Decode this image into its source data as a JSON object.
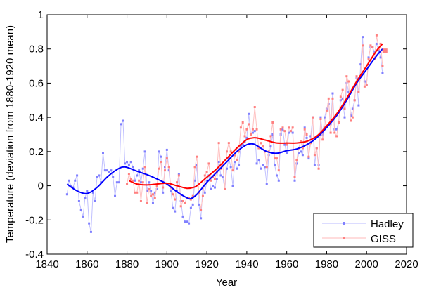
{
  "chart_data": {
    "type": "line",
    "xlabel": "Year",
    "ylabel": "Temperature (deviation from 1880-1920 mean)",
    "xlim": [
      1840,
      2020
    ],
    "ylim": [
      -0.4,
      1
    ],
    "xticks": [
      "1840",
      "1860",
      "1880",
      "1900",
      "1920",
      "1940",
      "1960",
      "1980",
      "2000",
      "2020"
    ],
    "yticks": [
      "-0.4",
      "-0.2",
      "0",
      "0.2",
      "0.4",
      "0.6",
      "0.8",
      "1"
    ],
    "grid": false,
    "legend_position": "bottom-right",
    "series": [
      {
        "name": "Hadley",
        "color": "#8080ff",
        "smooth_color": "#0000ff",
        "x_start": 1850,
        "values": [
          -0.05,
          0.03,
          0.0,
          -0.01,
          0.03,
          0.06,
          -0.09,
          -0.14,
          -0.18,
          -0.07,
          -0.03,
          -0.22,
          -0.27,
          -0.04,
          -0.09,
          0.05,
          0.06,
          0.02,
          0.19,
          0.09,
          0.09,
          0.08,
          0.09,
          0.05,
          -0.06,
          0.02,
          0.02,
          0.36,
          0.38,
          0.13,
          0.14,
          0.12,
          0.14,
          0.11,
          0.03,
          0.06,
          0.09,
          0.02,
          0.1,
          0.2,
          -0.03,
          0.02,
          -0.03,
          -0.1,
          -0.04,
          -0.02,
          0.2,
          0.17,
          -0.04,
          0.11,
          0.21,
          0.09,
          -0.03,
          -0.13,
          -0.15,
          -0.03,
          0.07,
          -0.09,
          -0.18,
          -0.21,
          -0.21,
          -0.22,
          -0.13,
          -0.11,
          0.03,
          0.12,
          -0.11,
          -0.19,
          -0.01,
          -0.04,
          0.03,
          0.06,
          -0.02,
          0.0,
          -0.01,
          0.04,
          0.14,
          0.06,
          0.05,
          -0.02,
          0.1,
          0.16,
          0.11,
          0.0,
          0.14,
          0.1,
          0.12,
          0.23,
          0.24,
          0.26,
          0.28,
          0.42,
          0.3,
          0.31,
          0.32,
          0.13,
          0.15,
          0.1,
          0.12,
          0.11,
          0.01,
          0.18,
          0.23,
          0.3,
          0.12,
          0.06,
          0.03,
          0.3,
          0.33,
          0.24,
          0.19,
          0.31,
          0.32,
          0.31,
          0.03,
          0.13,
          0.19,
          0.2,
          0.18,
          0.34,
          0.28,
          0.16,
          0.29,
          0.4,
          0.12,
          0.22,
          0.12,
          0.4,
          0.3,
          0.4,
          0.45,
          0.48,
          0.36,
          0.54,
          0.33,
          0.33,
          0.37,
          0.5,
          0.51,
          0.4,
          0.6,
          0.55,
          0.41,
          0.45,
          0.5,
          0.63,
          0.47,
          0.71,
          0.87,
          0.61,
          0.59,
          0.75,
          0.81,
          0.81,
          0.78,
          0.83,
          0.79,
          0.75,
          0.66
        ],
        "smooth": [
          [
            1850,
            0.01
          ],
          [
            1855,
            -0.03
          ],
          [
            1860,
            -0.045
          ],
          [
            1865,
            -0.01
          ],
          [
            1870,
            0.05
          ],
          [
            1875,
            0.095
          ],
          [
            1879,
            0.11
          ],
          [
            1885,
            0.085
          ],
          [
            1890,
            0.065
          ],
          [
            1895,
            0.04
          ],
          [
            1900,
            0.01
          ],
          [
            1905,
            -0.035
          ],
          [
            1910,
            -0.07
          ],
          [
            1912,
            -0.075
          ],
          [
            1915,
            -0.05
          ],
          [
            1920,
            0.02
          ],
          [
            1925,
            0.08
          ],
          [
            1930,
            0.14
          ],
          [
            1935,
            0.2
          ],
          [
            1940,
            0.24
          ],
          [
            1943,
            0.245
          ],
          [
            1945,
            0.235
          ],
          [
            1950,
            0.2
          ],
          [
            1955,
            0.19
          ],
          [
            1960,
            0.205
          ],
          [
            1965,
            0.215
          ],
          [
            1970,
            0.24
          ],
          [
            1975,
            0.28
          ],
          [
            1980,
            0.34
          ],
          [
            1985,
            0.41
          ],
          [
            1990,
            0.5
          ],
          [
            1995,
            0.6
          ],
          [
            2000,
            0.68
          ],
          [
            2005,
            0.76
          ],
          [
            2008,
            0.8
          ]
        ]
      },
      {
        "name": "GISS",
        "color": "#ff8080",
        "smooth_color": "#ff0000",
        "x_start": 1880,
        "values": [
          0.01,
          0.07,
          0.04,
          0.03,
          -0.04,
          -0.04,
          0.03,
          -0.09,
          0.02,
          0.11,
          -0.1,
          -0.02,
          -0.06,
          -0.05,
          -0.07,
          0.0,
          0.1,
          0.14,
          -0.01,
          0.09,
          0.16,
          0.11,
          -0.01,
          -0.05,
          -0.08,
          0.02,
          0.06,
          -0.12,
          -0.09,
          -0.1,
          -0.07,
          -0.07,
          -0.08,
          -0.06,
          0.11,
          0.17,
          -0.04,
          -0.14,
          -0.06,
          0.06,
          0.08,
          0.13,
          0.03,
          0.05,
          0.04,
          0.08,
          0.25,
          0.1,
          0.12,
          -0.02,
          0.2,
          0.25,
          0.2,
          0.09,
          0.18,
          0.15,
          0.2,
          0.34,
          0.37,
          0.29,
          0.33,
          0.36,
          0.3,
          0.33,
          0.46,
          0.33,
          0.22,
          0.25,
          0.23,
          0.2,
          0.11,
          0.2,
          0.29,
          0.37,
          0.16,
          0.16,
          0.09,
          0.33,
          0.34,
          0.32,
          0.24,
          0.34,
          0.32,
          0.34,
          0.05,
          0.15,
          0.22,
          0.26,
          0.22,
          0.33,
          0.3,
          0.17,
          0.25,
          0.4,
          0.18,
          0.22,
          0.1,
          0.39,
          0.27,
          0.34,
          0.44,
          0.51,
          0.31,
          0.51,
          0.31,
          0.29,
          0.37,
          0.52,
          0.56,
          0.45,
          0.64,
          0.61,
          0.38,
          0.4,
          0.5,
          0.64,
          0.55,
          0.64,
          0.82,
          0.58,
          0.59,
          0.74,
          0.82,
          0.81,
          0.74,
          0.88,
          0.8,
          0.83,
          0.7
        ],
        "smooth": [
          [
            1881,
            0.03
          ],
          [
            1885,
            0.01
          ],
          [
            1890,
            0.005
          ],
          [
            1895,
            0.01
          ],
          [
            1900,
            0.015
          ],
          [
            1905,
            0.0
          ],
          [
            1910,
            -0.015
          ],
          [
            1913,
            -0.01
          ],
          [
            1915,
            0.0
          ],
          [
            1920,
            0.05
          ],
          [
            1925,
            0.1
          ],
          [
            1930,
            0.16
          ],
          [
            1935,
            0.22
          ],
          [
            1940,
            0.27
          ],
          [
            1943,
            0.28
          ],
          [
            1945,
            0.28
          ],
          [
            1950,
            0.265
          ],
          [
            1955,
            0.25
          ],
          [
            1960,
            0.25
          ],
          [
            1965,
            0.25
          ],
          [
            1970,
            0.26
          ],
          [
            1975,
            0.29
          ],
          [
            1980,
            0.35
          ],
          [
            1985,
            0.42
          ],
          [
            1990,
            0.51
          ],
          [
            1995,
            0.61
          ],
          [
            2000,
            0.7
          ],
          [
            2005,
            0.79
          ],
          [
            2008,
            0.83
          ]
        ],
        "highlight_point": [
          2009,
          0.79
        ]
      }
    ]
  }
}
